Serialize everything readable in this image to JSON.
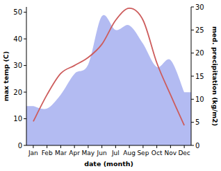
{
  "chart_data": {
    "type": "line",
    "x_label": "date (month)",
    "y_label": "max temp (C)",
    "y2_label": "med. precipitation (kg/m2)",
    "categories": [
      "Jan",
      "Feb",
      "Mar",
      "Apr",
      "May",
      "Jun",
      "Jul",
      "Aug",
      "Sep",
      "Oct",
      "Nov",
      "Dec"
    ],
    "ylim": [
      0,
      52
    ],
    "yticks": [
      0,
      10,
      20,
      30,
      40,
      50
    ],
    "y2lim": [
      0,
      30
    ],
    "y2ticks": [
      0,
      5,
      10,
      15,
      20,
      25,
      30
    ],
    "series": [
      {
        "name": "med. precipitation",
        "type": "area",
        "axis": "y2",
        "color": "#b3bbf2",
        "values": [
          8.5,
          8,
          11,
          15.5,
          17.5,
          28,
          25,
          26,
          22,
          17,
          18.5,
          11.5
        ]
      },
      {
        "name": "max temp",
        "type": "line",
        "color": "#cd5c5c",
        "values": [
          9,
          19,
          27,
          30,
          33,
          38,
          47,
          51.5,
          47,
          31,
          19,
          7.5
        ]
      }
    ]
  }
}
